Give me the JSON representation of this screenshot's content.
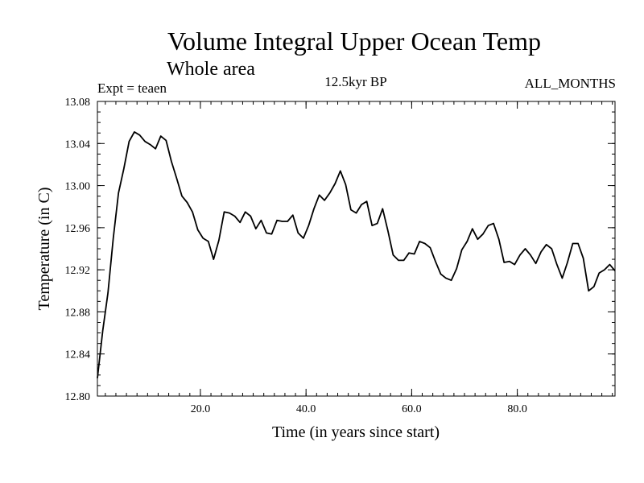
{
  "chart_data": {
    "type": "line",
    "title": "Volume Integral Upper Ocean Temp",
    "subtitle": "Whole area",
    "annotations": {
      "left": "Expt = teaen",
      "center": "12.5kyr BP",
      "right": "ALL_MONTHS"
    },
    "xlabel": "Time (in years since start)",
    "ylabel": "Temperature (in C)",
    "xlim": [
      0.5,
      98.5
    ],
    "ylim": [
      12.8,
      13.08
    ],
    "xticks": [
      20,
      40,
      60,
      80
    ],
    "xtick_labels": [
      "20.0",
      "40.0",
      "60.0",
      "80.0"
    ],
    "yticks": [
      12.8,
      12.84,
      12.88,
      12.92,
      12.96,
      13.0,
      13.04,
      13.08
    ],
    "ytick_labels": [
      "12.80",
      "12.84",
      "12.88",
      "12.92",
      "12.96",
      "13.00",
      "13.04",
      "13.08"
    ],
    "grid": false,
    "series": [
      {
        "name": "Volume Integral Upper Ocean Temp",
        "x": [
          0.5,
          1.5,
          2.5,
          3.5,
          4.5,
          5.5,
          6.5,
          7.5,
          8.5,
          9.5,
          10.5,
          11.5,
          12.5,
          13.5,
          14.5,
          15.5,
          16.5,
          17.5,
          18.5,
          19.5,
          20.5,
          21.5,
          22.5,
          23.5,
          24.5,
          25.5,
          26.5,
          27.5,
          28.5,
          29.5,
          30.5,
          31.5,
          32.5,
          33.5,
          34.5,
          35.5,
          36.5,
          37.5,
          38.5,
          39.5,
          40.5,
          41.5,
          42.5,
          43.5,
          44.5,
          45.5,
          46.5,
          47.5,
          48.5,
          49.5,
          50.5,
          51.5,
          52.5,
          53.5,
          54.5,
          55.5,
          56.5,
          57.5,
          58.5,
          59.5,
          60.5,
          61.5,
          62.5,
          63.5,
          64.5,
          65.5,
          66.5,
          67.5,
          68.5,
          69.5,
          70.5,
          71.5,
          72.5,
          73.5,
          74.5,
          75.5,
          76.5,
          77.5,
          78.5,
          79.5,
          80.5,
          81.5,
          82.5,
          83.5,
          84.5,
          85.5,
          86.5,
          87.5,
          88.5,
          89.5,
          90.5,
          91.5,
          92.5,
          93.5,
          94.5,
          95.5,
          96.5,
          97.5,
          98.5
        ],
        "values": [
          12.817,
          12.862,
          12.898,
          12.95,
          12.993,
          13.016,
          13.042,
          13.051,
          13.048,
          13.042,
          13.039,
          13.035,
          13.047,
          13.043,
          13.023,
          13.007,
          12.99,
          12.984,
          12.975,
          12.958,
          12.95,
          12.947,
          12.93,
          12.948,
          12.975,
          12.974,
          12.971,
          12.965,
          12.975,
          12.971,
          12.959,
          12.967,
          12.955,
          12.954,
          12.967,
          12.966,
          12.966,
          12.972,
          12.955,
          12.95,
          12.962,
          12.978,
          12.991,
          12.986,
          12.993,
          13.002,
          13.014,
          13.001,
          12.977,
          12.974,
          12.982,
          12.985,
          12.962,
          12.964,
          12.978,
          12.957,
          12.934,
          12.929,
          12.929,
          12.936,
          12.935,
          12.947,
          12.945,
          12.941,
          12.928,
          12.916,
          12.912,
          12.91,
          12.921,
          12.939,
          12.947,
          12.959,
          12.949,
          12.954,
          12.962,
          12.964,
          12.949,
          12.927,
          12.928,
          12.925,
          12.934,
          12.94,
          12.934,
          12.926,
          12.937,
          12.944,
          12.94,
          12.925,
          12.912,
          12.927,
          12.945,
          12.945,
          12.931,
          12.9,
          12.904,
          12.917,
          12.92,
          12.925,
          12.919
        ]
      }
    ]
  }
}
